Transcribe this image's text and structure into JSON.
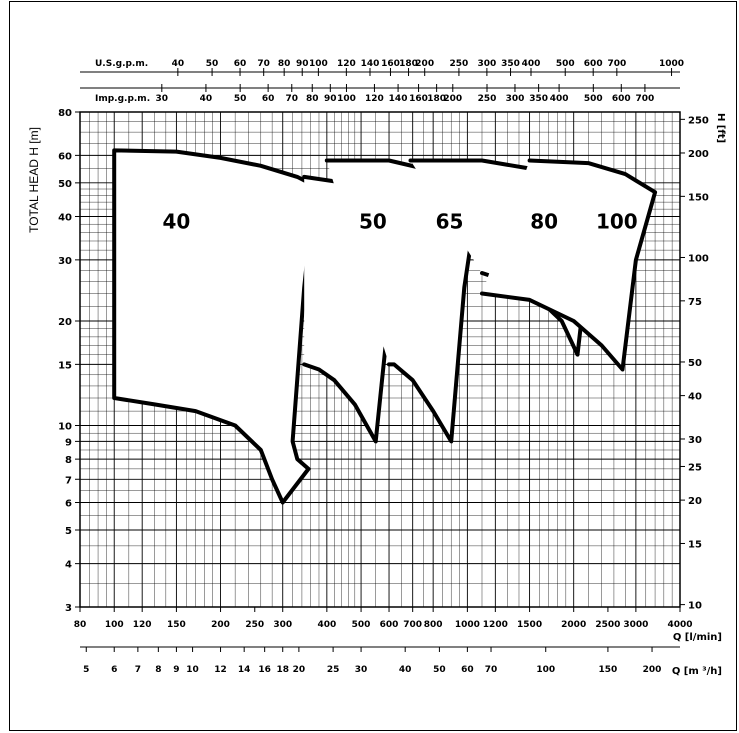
{
  "chart_data": {
    "type": "line",
    "title": "",
    "scale": "log-log",
    "grid": true,
    "xlim": [
      80,
      4000
    ],
    "ylim": [
      3,
      80
    ],
    "axes": {
      "x_bottom_primary": {
        "label": "Q [l/min]",
        "ticks": [
          80,
          100,
          120,
          150,
          200,
          250,
          300,
          400,
          500,
          600,
          700,
          800,
          1000,
          1200,
          1500,
          2000,
          2500,
          3000,
          4000
        ],
        "tick_labels": [
          "80",
          "100",
          "120",
          "150",
          "200",
          "250",
          "300",
          "400",
          "500",
          "600",
          "700",
          "800",
          "1000",
          "1200",
          "1500",
          "2000",
          "2500",
          "3000",
          "4000"
        ]
      },
      "x_bottom_secondary": {
        "label": "Q [m ³/h]",
        "ticks": [
          5,
          6,
          7,
          8,
          9,
          10,
          12,
          14,
          16,
          18,
          20,
          25,
          30,
          40,
          50,
          60,
          70,
          100,
          150,
          200
        ],
        "tick_labels": [
          "5",
          "6",
          "7",
          "8",
          "9",
          "10",
          "12",
          "14",
          "16",
          "18",
          "20",
          "25",
          "30",
          "40",
          "50",
          "60",
          "70",
          "100",
          "150",
          "200"
        ]
      },
      "x_top_usgpm": {
        "label": "U.S.g.p.m.",
        "ticks": [
          40,
          50,
          60,
          70,
          80,
          90,
          100,
          120,
          140,
          160,
          180,
          200,
          250,
          300,
          350,
          400,
          500,
          600,
          700,
          1000
        ],
        "tick_labels": [
          "40",
          "50",
          "60",
          "70",
          "80",
          "90",
          "100",
          "120",
          "140",
          "160",
          "180",
          "200",
          "250",
          "300",
          "350",
          "400",
          "500",
          "600",
          "700",
          "1000"
        ]
      },
      "x_top_impgpm": {
        "label": "Imp.g.p.m.",
        "ticks": [
          30,
          40,
          50,
          60,
          70,
          80,
          90,
          100,
          120,
          140,
          160,
          180,
          200,
          250,
          300,
          350,
          400,
          500,
          600,
          700
        ],
        "tick_labels": [
          "30",
          "40",
          "50",
          "60",
          "70",
          "80",
          "90",
          "100",
          "120",
          "140",
          "160",
          "180",
          "200",
          "250",
          "300",
          "350",
          "400",
          "500",
          "600",
          "700"
        ]
      },
      "y_left": {
        "label": "TOTAL HEAD   H [m]",
        "ticks": [
          3,
          4,
          5,
          6,
          7,
          8,
          9,
          10,
          15,
          20,
          30,
          40,
          50,
          60,
          80
        ],
        "tick_labels": [
          "3",
          "4",
          "5",
          "6",
          "7",
          "8",
          "9",
          "10",
          "15",
          "20",
          "30",
          "40",
          "50",
          "60",
          "80"
        ]
      },
      "y_right": {
        "label": "H [ft]",
        "ticks": [
          10,
          15,
          20,
          25,
          30,
          40,
          50,
          75,
          100,
          150,
          200,
          250
        ],
        "tick_labels": [
          "10",
          "15",
          "20",
          "25",
          "30",
          "40",
          "50",
          "75",
          "100",
          "150",
          "200",
          "250"
        ]
      }
    },
    "series": [
      {
        "name": "40",
        "label_at": [
          150,
          37
        ],
        "outline": [
          [
            100,
            62
          ],
          [
            150,
            61.5
          ],
          [
            200,
            59
          ],
          [
            260,
            56
          ],
          [
            330,
            52
          ],
          [
            370,
            49
          ],
          [
            345,
            25
          ],
          [
            320,
            9
          ],
          [
            330,
            8
          ],
          [
            355,
            7.5
          ],
          [
            300,
            6
          ],
          [
            280,
            7
          ],
          [
            260,
            8.5
          ],
          [
            220,
            10
          ],
          [
            170,
            11
          ],
          [
            130,
            11.5
          ],
          [
            100,
            12
          ],
          [
            100,
            62
          ]
        ]
      },
      {
        "name": "50",
        "label_at": [
          540,
          37
        ],
        "outline": [
          [
            345,
            52
          ],
          [
            450,
            50
          ],
          [
            550,
            47
          ],
          [
            650,
            41
          ],
          [
            610,
            25
          ],
          [
            550,
            9
          ],
          [
            480,
            11.5
          ],
          [
            420,
            13.5
          ],
          [
            380,
            14.5
          ],
          [
            345,
            15
          ]
        ]
      },
      {
        "name": "65",
        "label_at": [
          890,
          37
        ],
        "outline": [
          [
            400,
            58
          ],
          [
            600,
            58
          ],
          [
            750,
            55
          ],
          [
            900,
            48
          ],
          [
            1050,
            40
          ],
          [
            980,
            25
          ],
          [
            900,
            9
          ],
          [
            800,
            11
          ],
          [
            700,
            13.5
          ],
          [
            620,
            15
          ],
          [
            600,
            15
          ]
        ]
      },
      {
        "name": "80",
        "label_at": [
          1650,
          37
        ],
        "outline": [
          [
            690,
            58
          ],
          [
            1100,
            58
          ],
          [
            1500,
            55
          ],
          [
            1900,
            50
          ],
          [
            2350,
            43
          ],
          [
            2200,
            30
          ],
          [
            2050,
            16
          ],
          [
            1850,
            20
          ],
          [
            1600,
            23
          ],
          [
            1300,
            26
          ],
          [
            1100,
            27.5
          ]
        ]
      },
      {
        "name": "100",
        "label_at": [
          2650,
          37
        ],
        "outline": [
          [
            1500,
            58
          ],
          [
            2200,
            57
          ],
          [
            2800,
            53
          ],
          [
            3400,
            47
          ],
          [
            3000,
            30
          ],
          [
            2750,
            14.5
          ],
          [
            2400,
            17
          ],
          [
            2000,
            20
          ],
          [
            1500,
            23
          ],
          [
            1100,
            24
          ]
        ]
      }
    ]
  }
}
